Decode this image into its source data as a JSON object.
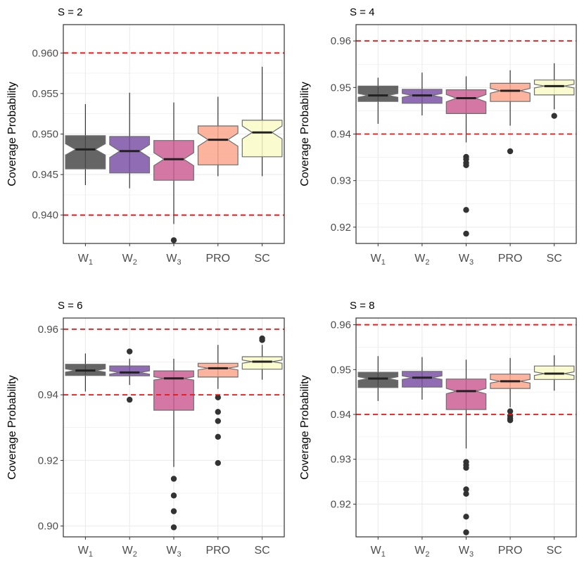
{
  "chart_data": [
    {
      "type": "boxplot",
      "title": "S = 2",
      "ylabel": "Coverage Probability",
      "xlabel": "",
      "categories": [
        {
          "base": "W",
          "sub": "1"
        },
        {
          "base": "W",
          "sub": "2"
        },
        {
          "base": "W",
          "sub": "3"
        },
        {
          "base": "PRO",
          "sub": ""
        },
        {
          "base": "SC",
          "sub": ""
        }
      ],
      "ylim": [
        0.9365,
        0.9635
      ],
      "yticks": [
        0.94,
        0.945,
        0.95,
        0.955,
        0.96
      ],
      "ytick_labels": [
        "0.940",
        "0.945",
        "0.950",
        "0.955",
        "0.960"
      ],
      "reference_lines": [
        0.94,
        0.96
      ],
      "boxes": [
        {
          "q1": 0.9457,
          "median": 0.9481,
          "q3": 0.9498,
          "whisker_low": 0.9437,
          "whisker_high": 0.9537,
          "notch_low": 0.9474,
          "notch_high": 0.9488,
          "outliers": []
        },
        {
          "q1": 0.9452,
          "median": 0.9479,
          "q3": 0.9497,
          "whisker_low": 0.9433,
          "whisker_high": 0.9551,
          "notch_low": 0.9471,
          "notch_high": 0.9487,
          "outliers": []
        },
        {
          "q1": 0.9443,
          "median": 0.9469,
          "q3": 0.9492,
          "whisker_low": 0.9389,
          "whisker_high": 0.9539,
          "notch_low": 0.9461,
          "notch_high": 0.9477,
          "outliers": [
            0.9369
          ]
        },
        {
          "q1": 0.9462,
          "median": 0.9493,
          "q3": 0.951,
          "whisker_low": 0.9448,
          "whisker_high": 0.9546,
          "notch_low": 0.9485,
          "notch_high": 0.9501,
          "outliers": []
        },
        {
          "q1": 0.9472,
          "median": 0.9502,
          "q3": 0.9517,
          "whisker_low": 0.9448,
          "whisker_high": 0.9583,
          "notch_low": 0.9494,
          "notch_high": 0.951,
          "outliers": []
        }
      ]
    },
    {
      "type": "boxplot",
      "title": "S = 4",
      "ylabel": "Coverage Probability",
      "xlabel": "",
      "categories": [
        {
          "base": "W",
          "sub": "1"
        },
        {
          "base": "W",
          "sub": "2"
        },
        {
          "base": "W",
          "sub": "3"
        },
        {
          "base": "PRO",
          "sub": ""
        },
        {
          "base": "SC",
          "sub": ""
        }
      ],
      "ylim": [
        0.9165,
        0.9635
      ],
      "yticks": [
        0.92,
        0.93,
        0.94,
        0.95,
        0.96
      ],
      "ytick_labels": [
        "0.92",
        "0.93",
        "0.94",
        "0.95",
        "0.96"
      ],
      "reference_lines": [
        0.94,
        0.96
      ],
      "boxes": [
        {
          "q1": 0.947,
          "median": 0.9483,
          "q3": 0.9503,
          "whisker_low": 0.9422,
          "whisker_high": 0.9521,
          "notch_low": 0.9479,
          "notch_high": 0.9487,
          "outliers": []
        },
        {
          "q1": 0.9466,
          "median": 0.9483,
          "q3": 0.9496,
          "whisker_low": 0.944,
          "whisker_high": 0.9532,
          "notch_low": 0.9479,
          "notch_high": 0.9487,
          "outliers": []
        },
        {
          "q1": 0.9444,
          "median": 0.9477,
          "q3": 0.9495,
          "whisker_low": 0.9382,
          "whisker_high": 0.9524,
          "notch_low": 0.9469,
          "notch_high": 0.9485,
          "outliers": [
            0.9351,
            0.9346,
            0.9338,
            0.9333,
            0.9237,
            0.9186
          ]
        },
        {
          "q1": 0.947,
          "median": 0.9493,
          "q3": 0.9509,
          "whisker_low": 0.9418,
          "whisker_high": 0.9537,
          "notch_low": 0.9488,
          "notch_high": 0.9498,
          "outliers": [
            0.9363
          ]
        },
        {
          "q1": 0.9484,
          "median": 0.9503,
          "q3": 0.9516,
          "whisker_low": 0.9453,
          "whisker_high": 0.9552,
          "notch_low": 0.9499,
          "notch_high": 0.9507,
          "outliers": [
            0.9439
          ]
        }
      ]
    },
    {
      "type": "boxplot",
      "title": "S = 6",
      "ylabel": "Coverage Probability",
      "xlabel": "",
      "categories": [
        {
          "base": "W",
          "sub": "1"
        },
        {
          "base": "W",
          "sub": "2"
        },
        {
          "base": "W",
          "sub": "3"
        },
        {
          "base": "PRO",
          "sub": ""
        },
        {
          "base": "SC",
          "sub": ""
        }
      ],
      "ylim": [
        0.8967,
        0.9634
      ],
      "yticks": [
        0.9,
        0.92,
        0.94,
        0.96
      ],
      "ytick_labels": [
        "0.90",
        "0.92",
        "0.94",
        "0.96"
      ],
      "reference_lines": [
        0.94,
        0.96
      ],
      "boxes": [
        {
          "q1": 0.9459,
          "median": 0.9474,
          "q3": 0.9493,
          "whisker_low": 0.941,
          "whisker_high": 0.9526,
          "notch_low": 0.9469,
          "notch_high": 0.9479,
          "outliers": []
        },
        {
          "q1": 0.9458,
          "median": 0.9468,
          "q3": 0.9488,
          "whisker_low": 0.943,
          "whisker_high": 0.951,
          "notch_low": 0.9463,
          "notch_high": 0.9473,
          "outliers": [
            0.9532,
            0.9385
          ]
        },
        {
          "q1": 0.9353,
          "median": 0.945,
          "q3": 0.9473,
          "whisker_low": 0.918,
          "whisker_high": 0.951,
          "notch_low": 0.9445,
          "notch_high": 0.9455,
          "outliers": [
            0.9144,
            0.9093,
            0.9045,
            0.8996
          ]
        },
        {
          "q1": 0.9454,
          "median": 0.9481,
          "q3": 0.9496,
          "whisker_low": 0.9418,
          "whisker_high": 0.9552,
          "notch_low": 0.9476,
          "notch_high": 0.9486,
          "outliers": [
            0.9392,
            0.9348,
            0.932,
            0.9272,
            0.9192
          ]
        },
        {
          "q1": 0.9478,
          "median": 0.9501,
          "q3": 0.9516,
          "whisker_low": 0.9446,
          "whisker_high": 0.9552,
          "notch_low": 0.9496,
          "notch_high": 0.9506,
          "outliers": [
            0.9572,
            0.9567
          ]
        }
      ]
    },
    {
      "type": "boxplot",
      "title": "S = 8",
      "ylabel": "Coverage Probability",
      "xlabel": "",
      "categories": [
        {
          "base": "W",
          "sub": "1"
        },
        {
          "base": "W",
          "sub": "2"
        },
        {
          "base": "W",
          "sub": "3"
        },
        {
          "base": "PRO",
          "sub": ""
        },
        {
          "base": "SC",
          "sub": ""
        }
      ],
      "ylim": [
        0.9127,
        0.9615
      ],
      "yticks": [
        0.92,
        0.93,
        0.94,
        0.95,
        0.96
      ],
      "ytick_labels": [
        "0.92",
        "0.93",
        "0.94",
        "0.95",
        "0.96"
      ],
      "reference_lines": [
        0.94,
        0.96
      ],
      "boxes": [
        {
          "q1": 0.946,
          "median": 0.948,
          "q3": 0.9494,
          "whisker_low": 0.943,
          "whisker_high": 0.953,
          "notch_low": 0.9476,
          "notch_high": 0.9484,
          "outliers": []
        },
        {
          "q1": 0.9461,
          "median": 0.9482,
          "q3": 0.9496,
          "whisker_low": 0.9433,
          "whisker_high": 0.9528,
          "notch_low": 0.9478,
          "notch_high": 0.9486,
          "outliers": []
        },
        {
          "q1": 0.9411,
          "median": 0.9452,
          "q3": 0.9479,
          "whisker_low": 0.9324,
          "whisker_high": 0.9522,
          "notch_low": 0.9446,
          "notch_high": 0.9458,
          "outliers": [
            0.9294,
            0.9287,
            0.9281,
            0.9233,
            0.9223,
            0.9172,
            0.9137
          ]
        },
        {
          "q1": 0.9458,
          "median": 0.9474,
          "q3": 0.949,
          "whisker_low": 0.9416,
          "whisker_high": 0.9526,
          "notch_low": 0.947,
          "notch_high": 0.9478,
          "outliers": [
            0.9407,
            0.9397,
            0.9391,
            0.9387
          ]
        },
        {
          "q1": 0.9478,
          "median": 0.9491,
          "q3": 0.9508,
          "whisker_low": 0.9453,
          "whisker_high": 0.9532,
          "notch_low": 0.9487,
          "notch_high": 0.9495,
          "outliers": []
        }
      ]
    }
  ],
  "colors": {
    "fills": [
      "#4a4a4a",
      "#7b52a6",
      "#cd5f95",
      "#fca78e",
      "#fafac8"
    ],
    "reference_line": "#ee1111",
    "panel_border": "#333333",
    "grid": "#ebebeb",
    "point": "#333333"
  }
}
